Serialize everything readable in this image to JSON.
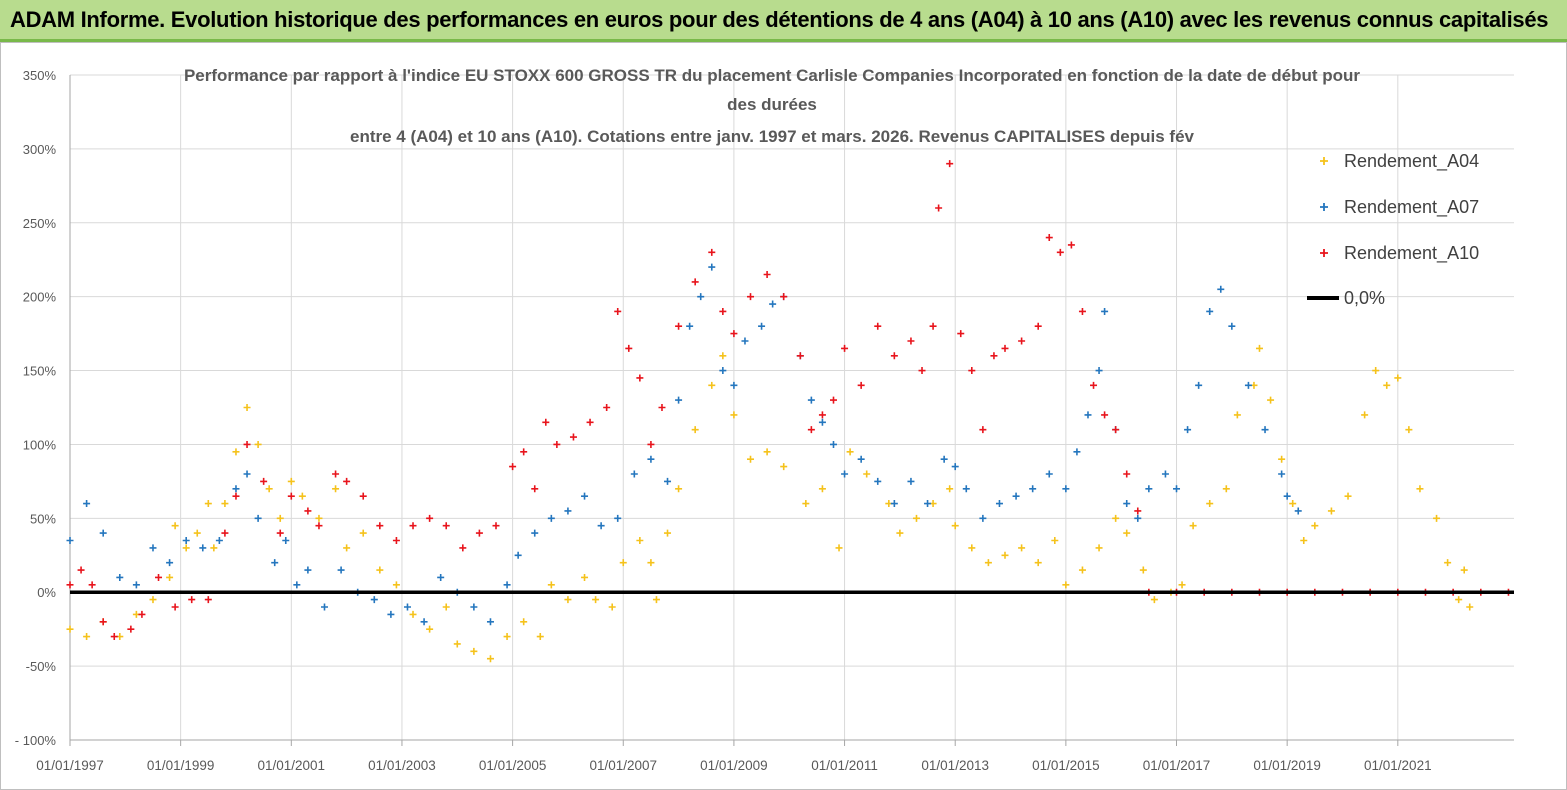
{
  "banner": {
    "title": "ADAM Informe. Evolution historique des performances en euros pour des détentions de 4 ans (A04) à 10 ans (A10) avec les revenus connus capitalisés"
  },
  "chart_data": {
    "type": "scatter",
    "title_lines": [
      "Performance par rapport à l'indice EU STOXX 600 GROSS TR  du placement Carlisle Companies Incorporated en fonction de la date de début pour",
      "des durées",
      "entre 4 (A04) et 10 ans (A10). Cotations entre janv. 1997 et mars. 2026. Revenus CAPITALISES depuis fév"
    ],
    "xlabel": "",
    "ylabel": "",
    "ylim": [
      -100,
      350
    ],
    "xlim": [
      1997.0,
      2023.1
    ],
    "y_ticks": [
      -100,
      -50,
      0,
      50,
      100,
      150,
      200,
      250,
      300,
      350
    ],
    "y_tick_labels": [
      "- 100%",
      "-50%",
      "0%",
      "50%",
      "100%",
      "150%",
      "200%",
      "250%",
      "300%",
      "350%"
    ],
    "x_ticks": [
      1997,
      1999,
      2001,
      2003,
      2005,
      2007,
      2009,
      2011,
      2013,
      2015,
      2017,
      2019,
      2021
    ],
    "x_tick_labels": [
      "01/01/1997",
      "01/01/1999",
      "01/01/2001",
      "01/01/2003",
      "01/01/2005",
      "01/01/2007",
      "01/01/2009",
      "01/01/2011",
      "01/01/2013",
      "01/01/2015",
      "01/01/2017",
      "01/01/2019",
      "01/01/2021"
    ],
    "legend_position": "right",
    "series": [
      {
        "name": "Rendement_A04",
        "color": "#f5c21b",
        "marker": "+",
        "points": [
          [
            1997.0,
            -25
          ],
          [
            1997.3,
            -30
          ],
          [
            1997.6,
            -20
          ],
          [
            1997.9,
            -30
          ],
          [
            1998.2,
            -15
          ],
          [
            1998.5,
            -5
          ],
          [
            1998.8,
            10
          ],
          [
            1998.9,
            45
          ],
          [
            1999.1,
            30
          ],
          [
            1999.3,
            40
          ],
          [
            1999.5,
            60
          ],
          [
            1999.6,
            30
          ],
          [
            1999.8,
            60
          ],
          [
            2000.0,
            95
          ],
          [
            2000.2,
            125
          ],
          [
            2000.4,
            100
          ],
          [
            2000.6,
            70
          ],
          [
            2000.8,
            50
          ],
          [
            2001.0,
            75
          ],
          [
            2001.2,
            65
          ],
          [
            2001.5,
            50
          ],
          [
            2001.8,
            70
          ],
          [
            2002.0,
            30
          ],
          [
            2002.3,
            40
          ],
          [
            2002.6,
            15
          ],
          [
            2002.9,
            5
          ],
          [
            2003.2,
            -15
          ],
          [
            2003.5,
            -25
          ],
          [
            2003.8,
            -10
          ],
          [
            2004.0,
            -35
          ],
          [
            2004.3,
            -40
          ],
          [
            2004.6,
            -45
          ],
          [
            2004.9,
            -30
          ],
          [
            2005.2,
            -20
          ],
          [
            2005.5,
            -30
          ],
          [
            2005.7,
            5
          ],
          [
            2006.0,
            -5
          ],
          [
            2006.3,
            10
          ],
          [
            2006.5,
            -5
          ],
          [
            2006.8,
            -10
          ],
          [
            2007.0,
            20
          ],
          [
            2007.3,
            35
          ],
          [
            2007.5,
            20
          ],
          [
            2007.6,
            -5
          ],
          [
            2007.8,
            40
          ],
          [
            2008.0,
            70
          ],
          [
            2008.3,
            110
          ],
          [
            2008.6,
            140
          ],
          [
            2008.8,
            160
          ],
          [
            2009.0,
            120
          ],
          [
            2009.3,
            90
          ],
          [
            2009.6,
            95
          ],
          [
            2009.9,
            85
          ],
          [
            2010.3,
            60
          ],
          [
            2010.6,
            70
          ],
          [
            2010.9,
            30
          ],
          [
            2011.1,
            95
          ],
          [
            2011.4,
            80
          ],
          [
            2011.8,
            60
          ],
          [
            2012.0,
            40
          ],
          [
            2012.3,
            50
          ],
          [
            2012.6,
            60
          ],
          [
            2012.9,
            70
          ],
          [
            2013.0,
            45
          ],
          [
            2013.3,
            30
          ],
          [
            2013.6,
            20
          ],
          [
            2013.9,
            25
          ],
          [
            2014.2,
            30
          ],
          [
            2014.5,
            20
          ],
          [
            2014.8,
            35
          ],
          [
            2015.0,
            5
          ],
          [
            2015.3,
            15
          ],
          [
            2015.6,
            30
          ],
          [
            2015.9,
            50
          ],
          [
            2016.1,
            40
          ],
          [
            2016.4,
            15
          ],
          [
            2016.6,
            -5
          ],
          [
            2016.9,
            0
          ],
          [
            2017.1,
            5
          ],
          [
            2017.3,
            45
          ],
          [
            2017.6,
            60
          ],
          [
            2017.9,
            70
          ],
          [
            2018.1,
            120
          ],
          [
            2018.4,
            140
          ],
          [
            2018.5,
            165
          ],
          [
            2018.7,
            130
          ],
          [
            2018.9,
            90
          ],
          [
            2019.1,
            60
          ],
          [
            2019.3,
            35
          ],
          [
            2019.5,
            45
          ],
          [
            2019.8,
            55
          ],
          [
            2020.1,
            65
          ],
          [
            2020.4,
            120
          ],
          [
            2020.6,
            150
          ],
          [
            2020.8,
            140
          ],
          [
            2021.0,
            145
          ],
          [
            2021.2,
            110
          ],
          [
            2021.4,
            70
          ],
          [
            2021.7,
            50
          ],
          [
            2021.9,
            20
          ],
          [
            2022.1,
            -5
          ],
          [
            2022.2,
            15
          ],
          [
            2022.3,
            -10
          ]
        ]
      },
      {
        "name": "Rendement_A07",
        "color": "#2476be",
        "marker": "+",
        "points": [
          [
            1997.0,
            35
          ],
          [
            1997.3,
            60
          ],
          [
            1997.6,
            40
          ],
          [
            1997.9,
            10
          ],
          [
            1998.2,
            5
          ],
          [
            1998.5,
            30
          ],
          [
            1998.8,
            20
          ],
          [
            1999.1,
            35
          ],
          [
            1999.4,
            30
          ],
          [
            1999.7,
            35
          ],
          [
            2000.0,
            70
          ],
          [
            2000.2,
            80
          ],
          [
            2000.4,
            50
          ],
          [
            2000.7,
            20
          ],
          [
            2000.9,
            35
          ],
          [
            2001.1,
            5
          ],
          [
            2001.3,
            15
          ],
          [
            2001.6,
            -10
          ],
          [
            2001.9,
            15
          ],
          [
            2002.2,
            0
          ],
          [
            2002.5,
            -5
          ],
          [
            2002.8,
            -15
          ],
          [
            2003.1,
            -10
          ],
          [
            2003.4,
            -20
          ],
          [
            2003.7,
            10
          ],
          [
            2004.0,
            0
          ],
          [
            2004.3,
            -10
          ],
          [
            2004.6,
            -20
          ],
          [
            2004.9,
            5
          ],
          [
            2005.1,
            25
          ],
          [
            2005.4,
            40
          ],
          [
            2005.7,
            50
          ],
          [
            2006.0,
            55
          ],
          [
            2006.3,
            65
          ],
          [
            2006.6,
            45
          ],
          [
            2006.9,
            50
          ],
          [
            2007.2,
            80
          ],
          [
            2007.5,
            90
          ],
          [
            2007.8,
            75
          ],
          [
            2008.0,
            130
          ],
          [
            2008.2,
            180
          ],
          [
            2008.4,
            200
          ],
          [
            2008.6,
            220
          ],
          [
            2008.8,
            150
          ],
          [
            2009.0,
            140
          ],
          [
            2009.2,
            170
          ],
          [
            2009.5,
            180
          ],
          [
            2009.7,
            195
          ],
          [
            2009.9,
            200
          ],
          [
            2010.2,
            160
          ],
          [
            2010.4,
            130
          ],
          [
            2010.6,
            115
          ],
          [
            2010.8,
            100
          ],
          [
            2011.0,
            80
          ],
          [
            2011.3,
            90
          ],
          [
            2011.6,
            75
          ],
          [
            2011.9,
            60
          ],
          [
            2012.2,
            75
          ],
          [
            2012.5,
            60
          ],
          [
            2012.8,
            90
          ],
          [
            2013.0,
            85
          ],
          [
            2013.2,
            70
          ],
          [
            2013.5,
            50
          ],
          [
            2013.8,
            60
          ],
          [
            2014.1,
            65
          ],
          [
            2014.4,
            70
          ],
          [
            2014.7,
            80
          ],
          [
            2015.0,
            70
          ],
          [
            2015.2,
            95
          ],
          [
            2015.4,
            120
          ],
          [
            2015.6,
            150
          ],
          [
            2015.7,
            190
          ],
          [
            2015.9,
            110
          ],
          [
            2016.1,
            60
          ],
          [
            2016.3,
            50
          ],
          [
            2016.5,
            70
          ],
          [
            2016.8,
            80
          ],
          [
            2017.0,
            70
          ],
          [
            2017.2,
            110
          ],
          [
            2017.4,
            140
          ],
          [
            2017.6,
            190
          ],
          [
            2017.8,
            205
          ],
          [
            2018.0,
            180
          ],
          [
            2018.3,
            140
          ],
          [
            2018.6,
            110
          ],
          [
            2018.9,
            80
          ],
          [
            2019.0,
            65
          ],
          [
            2019.2,
            55
          ]
        ]
      },
      {
        "name": "Rendement_A10",
        "color": "#e8141c",
        "marker": "+",
        "points": [
          [
            1997.0,
            5
          ],
          [
            1997.2,
            15
          ],
          [
            1997.4,
            5
          ],
          [
            1997.6,
            -20
          ],
          [
            1997.8,
            -30
          ],
          [
            1998.1,
            -25
          ],
          [
            1998.3,
            -15
          ],
          [
            1998.6,
            10
          ],
          [
            1998.9,
            -10
          ],
          [
            1999.2,
            -5
          ],
          [
            1999.5,
            -5
          ],
          [
            1999.8,
            40
          ],
          [
            2000.0,
            65
          ],
          [
            2000.2,
            100
          ],
          [
            2000.5,
            75
          ],
          [
            2000.8,
            40
          ],
          [
            2001.0,
            65
          ],
          [
            2001.3,
            55
          ],
          [
            2001.5,
            45
          ],
          [
            2001.8,
            80
          ],
          [
            2002.0,
            75
          ],
          [
            2002.3,
            65
          ],
          [
            2002.6,
            45
          ],
          [
            2002.9,
            35
          ],
          [
            2003.2,
            45
          ],
          [
            2003.5,
            50
          ],
          [
            2003.8,
            45
          ],
          [
            2004.1,
            30
          ],
          [
            2004.4,
            40
          ],
          [
            2004.7,
            45
          ],
          [
            2005.0,
            85
          ],
          [
            2005.2,
            95
          ],
          [
            2005.4,
            70
          ],
          [
            2005.6,
            115
          ],
          [
            2005.8,
            100
          ],
          [
            2006.1,
            105
          ],
          [
            2006.4,
            115
          ],
          [
            2006.7,
            125
          ],
          [
            2006.9,
            190
          ],
          [
            2007.1,
            165
          ],
          [
            2007.3,
            145
          ],
          [
            2007.5,
            100
          ],
          [
            2007.7,
            125
          ],
          [
            2008.0,
            180
          ],
          [
            2008.3,
            210
          ],
          [
            2008.6,
            230
          ],
          [
            2008.8,
            190
          ],
          [
            2009.0,
            175
          ],
          [
            2009.3,
            200
          ],
          [
            2009.6,
            215
          ],
          [
            2009.9,
            200
          ],
          [
            2010.2,
            160
          ],
          [
            2010.4,
            110
          ],
          [
            2010.6,
            120
          ],
          [
            2010.8,
            130
          ],
          [
            2011.0,
            165
          ],
          [
            2011.3,
            140
          ],
          [
            2011.6,
            180
          ],
          [
            2011.9,
            160
          ],
          [
            2012.2,
            170
          ],
          [
            2012.4,
            150
          ],
          [
            2012.6,
            180
          ],
          [
            2012.7,
            260
          ],
          [
            2012.9,
            290
          ],
          [
            2013.1,
            175
          ],
          [
            2013.3,
            150
          ],
          [
            2013.5,
            110
          ],
          [
            2013.7,
            160
          ],
          [
            2013.9,
            165
          ],
          [
            2014.2,
            170
          ],
          [
            2014.5,
            180
          ],
          [
            2014.7,
            240
          ],
          [
            2014.9,
            230
          ],
          [
            2015.1,
            235
          ],
          [
            2015.3,
            190
          ],
          [
            2015.5,
            140
          ],
          [
            2015.7,
            120
          ],
          [
            2015.9,
            110
          ],
          [
            2016.1,
            80
          ],
          [
            2016.3,
            55
          ],
          [
            2016.5,
            0
          ],
          [
            2017.0,
            0
          ],
          [
            2017.5,
            0
          ],
          [
            2018.0,
            0
          ],
          [
            2018.5,
            0
          ],
          [
            2019.0,
            0
          ],
          [
            2019.5,
            0
          ],
          [
            2020.0,
            0
          ],
          [
            2020.5,
            0
          ],
          [
            2021.0,
            0
          ],
          [
            2021.5,
            0
          ],
          [
            2022.0,
            0
          ],
          [
            2022.5,
            0
          ],
          [
            2023.0,
            0
          ]
        ]
      },
      {
        "name": "0,0%",
        "color": "#000000",
        "marker": "line",
        "points": [
          [
            1997.0,
            0
          ],
          [
            2023.1,
            0
          ]
        ]
      }
    ]
  }
}
